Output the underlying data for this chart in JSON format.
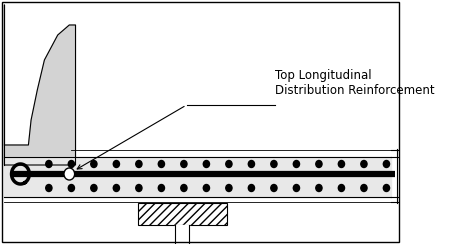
{
  "bg_color": "#ffffff",
  "border_color": "#000000",
  "parapet_fill": "#d3d3d3",
  "deck_fill": "#e8e8e8",
  "label_text": "Top Longitudinal\nDistribution Reinforcement",
  "fig_w": 4.51,
  "fig_h": 2.44,
  "dpi": 100
}
